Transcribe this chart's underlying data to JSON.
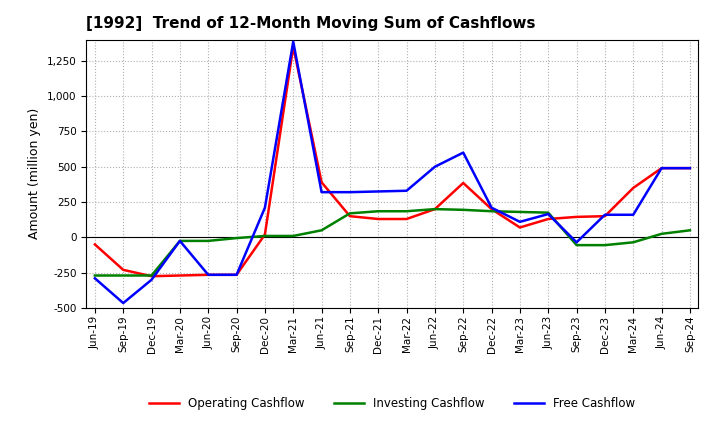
{
  "title": "[1992]  Trend of 12-Month Moving Sum of Cashflows",
  "ylabel": "Amount (million yen)",
  "ylim": [
    -500,
    1400
  ],
  "yticks": [
    -500,
    -250,
    0,
    250,
    500,
    750,
    1000,
    1250
  ],
  "background_color": "#ffffff",
  "grid_color": "#b0b0b0",
  "x_labels": [
    "Jun-19",
    "Sep-19",
    "Dec-19",
    "Mar-20",
    "Jun-20",
    "Sep-20",
    "Dec-20",
    "Mar-21",
    "Jun-21",
    "Sep-21",
    "Dec-21",
    "Mar-22",
    "Jun-22",
    "Sep-22",
    "Dec-22",
    "Mar-23",
    "Jun-23",
    "Sep-23",
    "Dec-23",
    "Mar-24",
    "Jun-24",
    "Sep-24"
  ],
  "operating_cashflow": [
    -50,
    -230,
    -275,
    -270,
    -265,
    -265,
    20,
    1350,
    390,
    150,
    130,
    130,
    200,
    385,
    200,
    70,
    130,
    145,
    150,
    350,
    490,
    490
  ],
  "investing_cashflow": [
    -270,
    -270,
    -270,
    -25,
    -25,
    -5,
    10,
    10,
    50,
    170,
    185,
    185,
    200,
    195,
    185,
    180,
    175,
    -55,
    -55,
    -35,
    25,
    50
  ],
  "free_cashflow": [
    -290,
    -465,
    -300,
    -25,
    -265,
    -265,
    210,
    1385,
    320,
    320,
    325,
    330,
    500,
    600,
    210,
    110,
    165,
    -35,
    160,
    160,
    490,
    490
  ],
  "operating_color": "#ff0000",
  "investing_color": "#008000",
  "free_color": "#0000ff",
  "line_width": 1.8,
  "title_fontsize": 11,
  "ylabel_fontsize": 9,
  "tick_fontsize": 7.5
}
